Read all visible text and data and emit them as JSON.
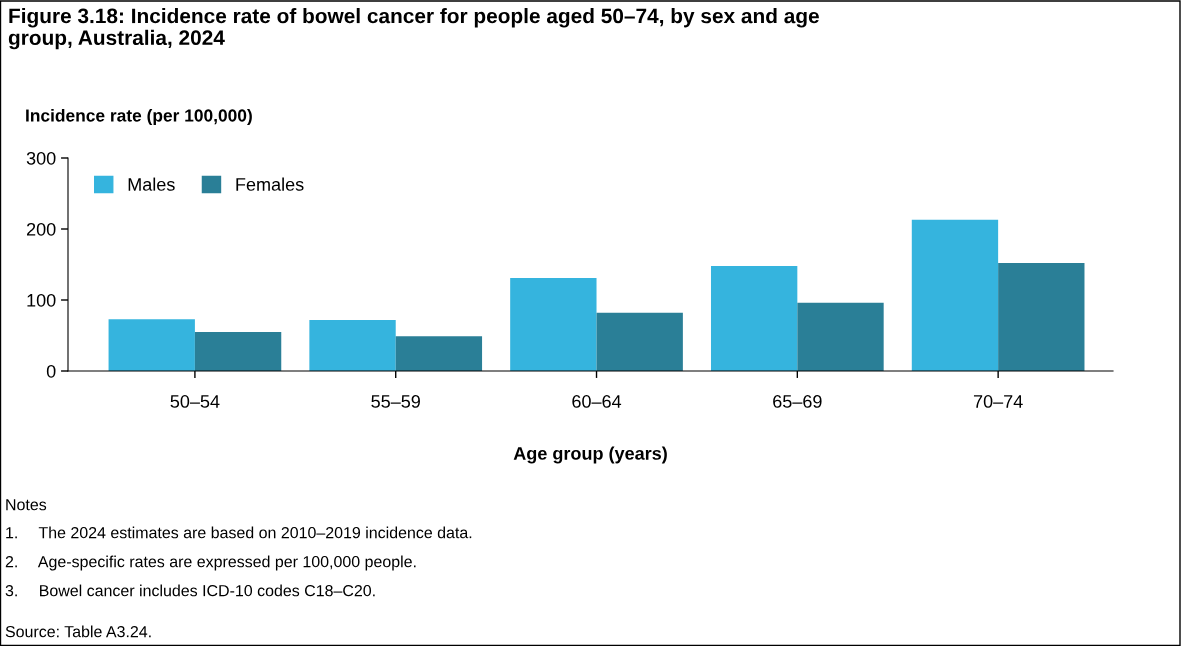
{
  "chart_data": {
    "type": "bar",
    "title": "Figure 3.18: Incidence rate of bowel cancer for people aged 50–74, by sex and age\ngroup, Australia, 2024",
    "ylabel": "Incidence rate (per 100,000)",
    "xlabel": "Age group (years)",
    "categories": [
      "50–54",
      "55–59",
      "60–64",
      "65–69",
      "70–74"
    ],
    "series": [
      {
        "name": "Males",
        "color": "#35b4de",
        "values": [
          73,
          72,
          131,
          148,
          213
        ]
      },
      {
        "name": "Females",
        "color": "#2a7f97",
        "values": [
          55,
          49,
          82,
          96,
          152
        ]
      }
    ],
    "ylim": [
      0,
      300
    ],
    "yticks": [
      0,
      100,
      200,
      300
    ],
    "grid": false,
    "legend": "top left",
    "annotations": [
      "Notes",
      "1.  The 2024 estimates are based on 2010–2019 incidence data.",
      "2.  Age-specific rates are expressed per 100,000 people.",
      "3.  Bowel cancer includes ICD-10 codes C18–C20.",
      "Source: Table A3.24."
    ]
  }
}
